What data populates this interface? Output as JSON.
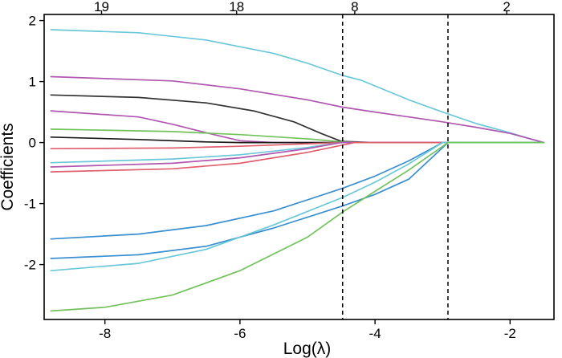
{
  "chart_data": {
    "type": "line",
    "title": "",
    "xlabel": "Log(λ)",
    "ylabel": "Coefficients",
    "xlim": [
      -8.9,
      -1.35
    ],
    "ylim": [
      -2.9,
      2.1
    ],
    "x_ticks": [
      {
        "value": -8,
        "label": "-8"
      },
      {
        "value": -6,
        "label": "-6"
      },
      {
        "value": -4,
        "label": "-4"
      },
      {
        "value": -2,
        "label": "-2"
      }
    ],
    "y_ticks": [
      {
        "value": 2,
        "label": "2"
      },
      {
        "value": 1,
        "label": "1"
      },
      {
        "value": 0,
        "label": "0"
      },
      {
        "value": -1,
        "label": "-1"
      },
      {
        "value": -2,
        "label": "-2"
      }
    ],
    "top_axis_ticks": [
      {
        "value": -8.05,
        "label": "19"
      },
      {
        "value": -6.05,
        "label": "18"
      },
      {
        "value": -4.3,
        "label": "8"
      },
      {
        "value": -2.05,
        "label": "2"
      }
    ],
    "vlines": [
      -4.48,
      -2.92
    ],
    "grid": false,
    "legend": "none",
    "series": [
      {
        "color": "#6bc8d8",
        "x": [
          -8.8,
          -7.5,
          -6.5,
          -5.5,
          -5.0,
          -4.48,
          -4.2,
          -3.5,
          -3.0,
          -2.5,
          -2.0,
          -1.7,
          -1.5
        ],
        "y": [
          1.85,
          1.8,
          1.68,
          1.46,
          1.3,
          1.1,
          1.02,
          0.7,
          0.5,
          0.31,
          0.16,
          0.06,
          0.0
        ]
      },
      {
        "color": "#b057b0",
        "x": [
          -8.8,
          -7,
          -6,
          -5,
          -4.48,
          -4,
          -3,
          -2.5,
          -2,
          -1.5
        ],
        "y": [
          1.08,
          1.01,
          0.88,
          0.7,
          0.58,
          0.5,
          0.34,
          0.25,
          0.15,
          0.0
        ]
      },
      {
        "color": "#333333",
        "x": [
          -8.8,
          -7.5,
          -6.5,
          -5.8,
          -5.2,
          -4.8,
          -4.5,
          -4.0,
          -1.5
        ],
        "y": [
          0.78,
          0.74,
          0.65,
          0.52,
          0.34,
          0.15,
          0.02,
          0.0,
          0.0
        ]
      },
      {
        "color": "#b057b0",
        "x": [
          -8.8,
          -7.5,
          -7.0,
          -6.5,
          -6.0,
          -5.5,
          -1.5
        ],
        "y": [
          0.52,
          0.42,
          0.3,
          0.16,
          0.03,
          0.0,
          0.0
        ]
      },
      {
        "color": "#72c25b",
        "x": [
          -8.8,
          -7.0,
          -6.0,
          -5.0,
          -4.48,
          -4.2,
          -1.5
        ],
        "y": [
          0.22,
          0.18,
          0.13,
          0.06,
          0.01,
          0.0,
          0.0
        ]
      },
      {
        "color": "#1a1a1a",
        "x": [
          -8.8,
          -7.5,
          -6.5,
          -6.0,
          -1.5
        ],
        "y": [
          0.09,
          0.05,
          0.01,
          0.0,
          0.0
        ]
      },
      {
        "color": "#e0606f",
        "x": [
          -8.8,
          -7.0,
          -6.0,
          -5.0,
          -4.5,
          -1.5
        ],
        "y": [
          -0.1,
          -0.09,
          -0.06,
          -0.02,
          0.0,
          0.0
        ]
      },
      {
        "color": "#6bc8d8",
        "x": [
          -8.8,
          -7.0,
          -6.0,
          -5.0,
          -4.5,
          -1.5
        ],
        "y": [
          -0.33,
          -0.27,
          -0.2,
          -0.08,
          0.0,
          0.0
        ]
      },
      {
        "color": "#b057b0",
        "x": [
          -8.8,
          -7.0,
          -6.0,
          -5.0,
          -4.5,
          -1.5
        ],
        "y": [
          -0.4,
          -0.34,
          -0.25,
          -0.1,
          0.0,
          0.0
        ]
      },
      {
        "color": "#e0606f",
        "x": [
          -8.8,
          -7.0,
          -6.0,
          -5.0,
          -4.3,
          -1.5
        ],
        "y": [
          -0.48,
          -0.43,
          -0.34,
          -0.16,
          0.0,
          0.0
        ]
      },
      {
        "color": "#3a8fd0",
        "x": [
          -8.8,
          -7.5,
          -6.5,
          -5.5,
          -4.48,
          -4.0,
          -3.5,
          -3.0,
          -1.5
        ],
        "y": [
          -1.58,
          -1.5,
          -1.36,
          -1.12,
          -0.75,
          -0.55,
          -0.3,
          0.0,
          0.0
        ]
      },
      {
        "color": "#3a8fd0",
        "x": [
          -8.8,
          -7.5,
          -6.5,
          -5.5,
          -4.48,
          -4.0,
          -3.5,
          -2.92,
          -1.5
        ],
        "y": [
          -1.9,
          -1.84,
          -1.7,
          -1.4,
          -1.04,
          -0.85,
          -0.6,
          0.0,
          0.0
        ]
      },
      {
        "color": "#6bc8d8",
        "x": [
          -8.8,
          -7.5,
          -6.5,
          -5.5,
          -4.48,
          -4.0,
          -3.5,
          -3.0,
          -1.5
        ],
        "y": [
          -2.1,
          -1.98,
          -1.75,
          -1.35,
          -0.9,
          -0.65,
          -0.35,
          0.0,
          0.0
        ]
      },
      {
        "color": "#72c25b",
        "x": [
          -8.8,
          -8.0,
          -7.0,
          -6.0,
          -5.0,
          -4.48,
          -4.0,
          -3.5,
          -2.92,
          -1.5
        ],
        "y": [
          -2.76,
          -2.7,
          -2.5,
          -2.1,
          -1.55,
          -1.14,
          -0.8,
          -0.45,
          0.0,
          0.0
        ]
      }
    ]
  }
}
